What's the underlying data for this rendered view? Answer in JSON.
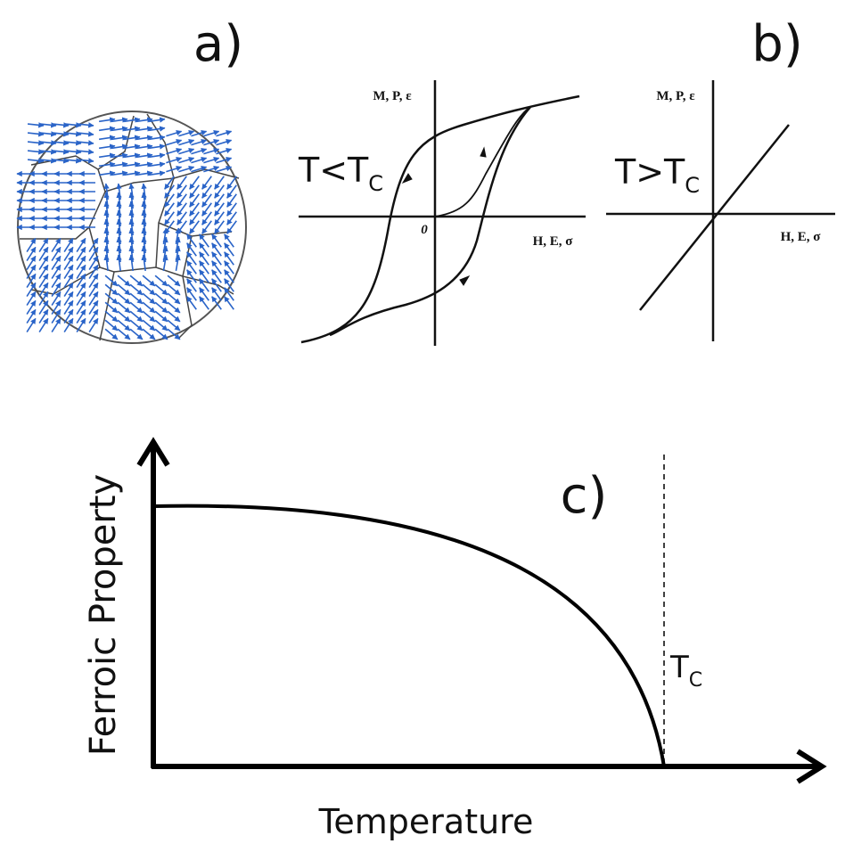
{
  "panels": {
    "a": {
      "label": "a)"
    },
    "b": {
      "label": "b)",
      "below_tc": {
        "condition": {
          "main": "T<T",
          "sub": "C"
        },
        "y_axis_label": "M, P, ε",
        "x_axis_label": "H, E, σ",
        "origin_label": "0"
      },
      "above_tc": {
        "condition": {
          "main": "T>T",
          "sub": "C"
        },
        "y_axis_label": "M, P, ε",
        "x_axis_label": "H, E, σ"
      }
    },
    "c": {
      "label": "c)",
      "y_axis_label": "Ferroic Property",
      "x_axis_label": "Temperature",
      "transition_label": {
        "main": "T",
        "sub": "C"
      }
    }
  }
}
